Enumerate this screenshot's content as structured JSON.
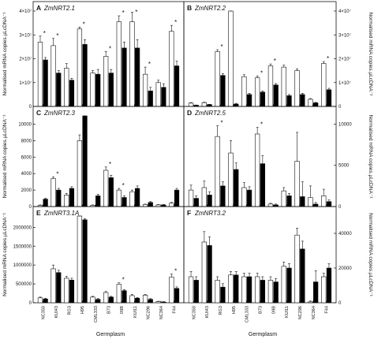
{
  "colors": {
    "open_bar": "#ffffff",
    "filled_bar": "#000000",
    "axis": "#111111"
  },
  "shared_x": {
    "germplasm": [
      "NC350",
      "KUI43",
      "RG3",
      "H95",
      "CML333",
      "B73",
      "09B",
      "KUI11",
      "NC296",
      "NC364",
      "F44"
    ],
    "xlabel": "Germplasm"
  },
  "chart_data": [
    {
      "id": "A",
      "type": "bar",
      "letter": "A",
      "gene": "ZmNRT2.1",
      "ylabel": "Normalised mRNA copies.µLcDNA⁻¹",
      "ylim": [
        0,
        40000000
      ],
      "y_ticks": [
        0,
        10000000,
        20000000,
        30000000,
        40000000
      ],
      "y_tick_labels": [
        "0",
        "1×10⁷",
        "2×10⁷",
        "3×10⁷",
        "4×10⁷"
      ],
      "series": [
        {
          "values": [
            27000000,
            25500000,
            16000000,
            32500000,
            14000000,
            21000000,
            35500000,
            35500000,
            13500000,
            10000000,
            31500000
          ],
          "errors": [
            2500000,
            3000000,
            2000000,
            800000,
            1000000,
            2000000,
            2500000,
            4000000,
            3000000,
            1000000,
            2500000
          ]
        },
        {
          "values": [
            19500000,
            14000000,
            11000000,
            26000000,
            13500000,
            14000000,
            24500000,
            24500000,
            6500000,
            8000000,
            17000000
          ],
          "errors": [
            1000000,
            1000000,
            800000,
            2000000,
            2000000,
            1500000,
            2500000,
            3500000,
            1500000,
            1500000,
            2000000
          ]
        }
      ],
      "stars": [
        0,
        1,
        3,
        5,
        6,
        7,
        8,
        10
      ]
    },
    {
      "id": "B",
      "type": "bar",
      "letter": "B",
      "gene": "ZmNRT2.2",
      "ylabel": "Normalised mRNA copies.µLcDNA⁻¹",
      "ylim": [
        0,
        40000000
      ],
      "y_ticks": [
        0,
        10000000,
        20000000,
        30000000,
        40000000
      ],
      "y_tick_labels": [
        "0",
        "1×10⁷",
        "2×10⁷",
        "3×10⁷",
        "4×10⁷"
      ],
      "series": [
        {
          "values": [
            1400000,
            1600000,
            23000000,
            40000000,
            12500000,
            12000000,
            17000000,
            16500000,
            15000000,
            3000000,
            18000000
          ],
          "errors": [
            200000,
            200000,
            800000,
            1000000,
            800000,
            800000,
            800000,
            800000,
            800000,
            300000,
            800000
          ]
        },
        {
          "values": [
            500000,
            800000,
            13000000,
            1000000,
            5000000,
            6000000,
            9000000,
            4500000,
            5000000,
            1500000,
            7000000
          ],
          "errors": [
            100000,
            100000,
            800000,
            300000,
            500000,
            500000,
            600000,
            500000,
            500000,
            200000,
            600000
          ]
        }
      ],
      "stars": [
        2,
        5,
        6,
        10
      ]
    },
    {
      "id": "C",
      "type": "bar",
      "letter": "C",
      "gene": "ZmNRT2.3",
      "ylabel": "Normalised mRNA copies.µLcDNA⁻¹",
      "ylim": [
        0,
        11000
      ],
      "y_ticks": [
        0,
        2000,
        4000,
        6000,
        8000,
        10000
      ],
      "y_tick_labels": [
        "0",
        "2000",
        "4000",
        "6000",
        "8000",
        "10000"
      ],
      "series": [
        {
          "values": [
            150,
            3400,
            1400,
            8000,
            150,
            4400,
            2000,
            1800,
            250,
            200,
            400
          ],
          "errors": [
            50,
            200,
            200,
            700,
            50,
            400,
            200,
            200,
            50,
            50,
            100
          ]
        },
        {
          "values": [
            900,
            2000,
            2200,
            11000,
            1300,
            3500,
            1100,
            2200,
            500,
            200,
            2000
          ],
          "errors": [
            100,
            200,
            200,
            400,
            200,
            300,
            200,
            300,
            100,
            50,
            200
          ]
        }
      ],
      "stars": [
        0,
        1,
        2,
        5,
        6
      ]
    },
    {
      "id": "D",
      "type": "bar",
      "letter": "D",
      "gene": "ZmNRT2.5",
      "ylabel": "Normalised mRNA copies.µLcDNA⁻¹",
      "ylim": [
        0,
        11000
      ],
      "y_ticks": [
        0,
        5000,
        10000
      ],
      "y_tick_labels": [
        "0",
        "5000",
        "10000"
      ],
      "series": [
        {
          "values": [
            2000,
            2300,
            8500,
            6500,
            2300,
            8800,
            300,
            1900,
            5500,
            1100,
            1300
          ],
          "errors": [
            600,
            800,
            1300,
            1500,
            600,
            800,
            100,
            400,
            3500,
            1400,
            800
          ]
        },
        {
          "values": [
            1000,
            1400,
            2500,
            4500,
            2000,
            5200,
            200,
            1300,
            1200,
            300,
            600
          ],
          "errors": [
            300,
            400,
            500,
            800,
            400,
            1000,
            100,
            300,
            1800,
            200,
            200
          ]
        }
      ],
      "stars": [
        2,
        5
      ]
    },
    {
      "id": "E",
      "type": "bar",
      "letter": "E",
      "gene": "ZmNRT3.1A",
      "ylabel": "Normalised mRNA copies.µLcDNA⁻¹",
      "ylim": [
        0,
        2300000
      ],
      "y_ticks": [
        0,
        500000,
        1000000,
        1500000,
        2000000
      ],
      "y_tick_labels": [
        "0",
        "500000",
        "1000000",
        "1500000",
        "2000000"
      ],
      "series": [
        {
          "values": [
            130000,
            900000,
            650000,
            2300000,
            150000,
            270000,
            490000,
            190000,
            200000,
            30000,
            680000
          ],
          "errors": [
            20000,
            100000,
            50000,
            30000,
            20000,
            30000,
            40000,
            30000,
            20000,
            10000,
            80000
          ]
        },
        {
          "values": [
            100000,
            800000,
            600000,
            2200000,
            90000,
            150000,
            320000,
            120000,
            90000,
            20000,
            380000
          ],
          "errors": [
            20000,
            60000,
            50000,
            30000,
            20000,
            20000,
            30000,
            20000,
            20000,
            10000,
            40000
          ]
        }
      ],
      "stars": [
        6,
        10
      ]
    },
    {
      "id": "F",
      "type": "bar",
      "letter": "F",
      "gene": "ZmNRT3.2",
      "ylabel": "Normalised mRNA copies.µLcDNA⁻¹",
      "ylim": [
        0,
        50000
      ],
      "y_ticks": [
        0,
        20000,
        40000
      ],
      "y_tick_labels": [
        "0",
        "20000",
        "40000"
      ],
      "series": [
        {
          "values": [
            15000,
            35000,
            13000,
            16000,
            15000,
            15000,
            13000,
            21000,
            39000,
            500,
            15000
          ],
          "errors": [
            3000,
            6000,
            2000,
            2000,
            2000,
            2000,
            2000,
            2500,
            4000,
            500,
            2000
          ]
        },
        {
          "values": [
            13000,
            33000,
            9000,
            16000,
            15000,
            13000,
            12000,
            20000,
            31000,
            12000,
            20000
          ],
          "errors": [
            2000,
            5000,
            2000,
            2000,
            2000,
            2000,
            2000,
            2500,
            4500,
            6500,
            2500
          ]
        }
      ],
      "stars": []
    }
  ]
}
